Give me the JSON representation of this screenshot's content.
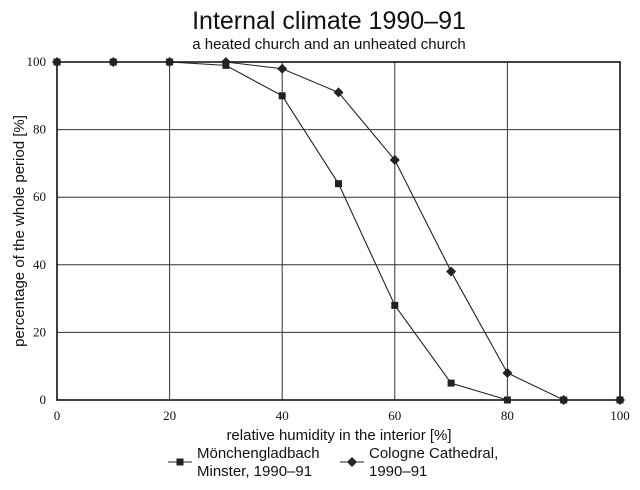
{
  "chart_data": {
    "type": "line",
    "title": "Internal climate 1990–91",
    "subtitle": "a heated church and an unheated church",
    "xlabel": "relative humidity in the interior [%]",
    "ylabel": "percentage of the whole period [%]",
    "xlim": [
      0,
      100
    ],
    "ylim": [
      0,
      100
    ],
    "xticks": [
      0,
      20,
      40,
      60,
      80,
      100
    ],
    "yticks": [
      0,
      20,
      40,
      60,
      80,
      100
    ],
    "grid": true,
    "legend_position": "bottom",
    "series": [
      {
        "name": "Mönchengladbach Minster, 1990–91",
        "name_lines": [
          "Mönchengladbach",
          "Minster, 1990–91"
        ],
        "marker": "square",
        "color": "#222222",
        "x": [
          0,
          10,
          20,
          30,
          40,
          50,
          60,
          70,
          80,
          90,
          100
        ],
        "y": [
          100,
          100,
          100,
          99,
          90,
          64,
          28,
          5,
          0,
          0,
          0
        ]
      },
      {
        "name": "Cologne Cathedral, 1990–91",
        "name_lines": [
          "Cologne Cathedral,",
          "1990–91"
        ],
        "marker": "diamond",
        "color": "#222222",
        "x": [
          0,
          10,
          20,
          30,
          40,
          50,
          60,
          70,
          80,
          90,
          100
        ],
        "y": [
          100,
          100,
          100,
          100,
          98,
          91,
          71,
          38,
          8,
          0,
          0
        ]
      }
    ]
  }
}
